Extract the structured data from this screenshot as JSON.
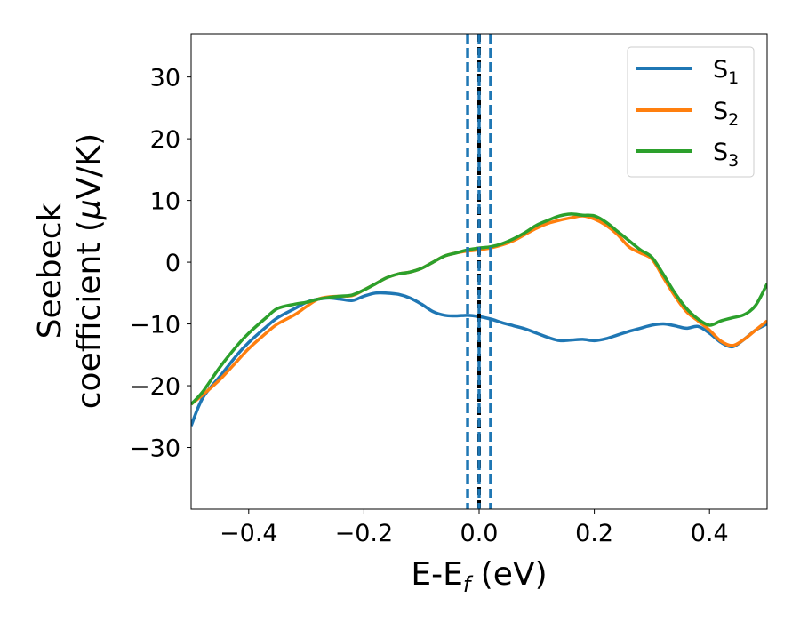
{
  "chart_data": {
    "type": "line",
    "xlabel": {
      "main": "E-E",
      "sub": "f",
      "unit": " (eV)"
    },
    "ylabel": {
      "line1": "Seebeck",
      "line2": "coefficient  (",
      "mu": "μ",
      "unit": "V/K)"
    },
    "xlim": [
      -0.5,
      0.5
    ],
    "ylim": [
      -40,
      37
    ],
    "xticks": [
      -0.4,
      -0.2,
      0.0,
      0.2,
      0.4
    ],
    "xtick_labels": [
      "−0.4",
      "−0.2",
      "0.0",
      "0.2",
      "0.4"
    ],
    "yticks": [
      -30,
      -20,
      -10,
      0,
      10,
      20,
      30
    ],
    "ytick_labels": [
      "−30",
      "−20",
      "−10",
      "0",
      "10",
      "20",
      "30"
    ],
    "grid": false,
    "legend_position": "top-right",
    "colors": {
      "S1": "#1f77b4",
      "S2": "#ff7f0e",
      "S3": "#2ca02c",
      "fermi": "#000000"
    },
    "series": [
      {
        "key": "S1",
        "name": "S",
        "sub": "1",
        "color": "#1f77b4",
        "x": [
          -0.5,
          -0.48,
          -0.45,
          -0.42,
          -0.4,
          -0.37,
          -0.35,
          -0.32,
          -0.3,
          -0.28,
          -0.26,
          -0.24,
          -0.22,
          -0.2,
          -0.18,
          -0.16,
          -0.14,
          -0.12,
          -0.1,
          -0.08,
          -0.06,
          -0.04,
          -0.02,
          0.0,
          0.02,
          0.04,
          0.06,
          0.08,
          0.1,
          0.12,
          0.14,
          0.16,
          0.18,
          0.2,
          0.22,
          0.24,
          0.26,
          0.28,
          0.3,
          0.32,
          0.34,
          0.36,
          0.38,
          0.4,
          0.42,
          0.44,
          0.46,
          0.48,
          0.5
        ],
        "y": [
          -26.5,
          -22.0,
          -18.5,
          -15.0,
          -13.0,
          -10.5,
          -9.0,
          -7.5,
          -6.5,
          -6.0,
          -5.8,
          -6.0,
          -6.2,
          -5.5,
          -5.0,
          -5.0,
          -5.2,
          -5.8,
          -6.8,
          -8.0,
          -8.6,
          -8.7,
          -8.6,
          -8.8,
          -9.2,
          -9.8,
          -10.3,
          -10.8,
          -11.5,
          -12.2,
          -12.7,
          -12.6,
          -12.5,
          -12.7,
          -12.4,
          -11.8,
          -11.2,
          -10.7,
          -10.2,
          -10.0,
          -10.3,
          -10.7,
          -10.4,
          -11.5,
          -13.0,
          -13.7,
          -12.5,
          -11.0,
          -10.0
        ]
      },
      {
        "key": "S2",
        "name": "S",
        "sub": "2",
        "color": "#ff7f0e",
        "x": [
          -0.5,
          -0.48,
          -0.45,
          -0.42,
          -0.4,
          -0.37,
          -0.35,
          -0.32,
          -0.3,
          -0.28,
          -0.26,
          -0.24,
          -0.22,
          -0.2,
          -0.18,
          -0.16,
          -0.14,
          -0.12,
          -0.1,
          -0.08,
          -0.06,
          -0.04,
          -0.02,
          0.0,
          0.02,
          0.04,
          0.06,
          0.08,
          0.1,
          0.12,
          0.14,
          0.16,
          0.18,
          0.2,
          0.22,
          0.24,
          0.26,
          0.28,
          0.3,
          0.32,
          0.34,
          0.36,
          0.38,
          0.4,
          0.42,
          0.44,
          0.46,
          0.48,
          0.5
        ],
        "y": [
          -23.0,
          -21.5,
          -19.0,
          -16.0,
          -14.0,
          -11.5,
          -10.0,
          -8.5,
          -7.2,
          -6.0,
          -5.6,
          -5.5,
          -5.4,
          -4.5,
          -3.5,
          -2.5,
          -1.9,
          -1.6,
          -1.0,
          0.0,
          1.0,
          1.5,
          1.8,
          2.0,
          2.3,
          2.8,
          3.5,
          4.5,
          5.5,
          6.3,
          6.8,
          7.2,
          7.5,
          7.0,
          6.0,
          4.5,
          2.5,
          1.5,
          0.5,
          -2.5,
          -5.5,
          -8.0,
          -9.5,
          -11.0,
          -12.8,
          -13.5,
          -12.5,
          -11.0,
          -9.5
        ]
      },
      {
        "key": "S3",
        "name": "S",
        "sub": "3",
        "color": "#2ca02c",
        "x": [
          -0.5,
          -0.48,
          -0.45,
          -0.42,
          -0.4,
          -0.37,
          -0.35,
          -0.32,
          -0.3,
          -0.28,
          -0.26,
          -0.24,
          -0.22,
          -0.2,
          -0.18,
          -0.16,
          -0.14,
          -0.12,
          -0.1,
          -0.08,
          -0.06,
          -0.04,
          -0.02,
          0.0,
          0.02,
          0.04,
          0.06,
          0.08,
          0.1,
          0.12,
          0.14,
          0.16,
          0.18,
          0.2,
          0.22,
          0.24,
          0.26,
          0.28,
          0.3,
          0.32,
          0.34,
          0.36,
          0.38,
          0.4,
          0.42,
          0.44,
          0.46,
          0.48,
          0.5
        ],
        "y": [
          -23.0,
          -21.0,
          -17.0,
          -13.5,
          -11.5,
          -9.0,
          -7.5,
          -6.8,
          -6.5,
          -6.0,
          -5.7,
          -5.5,
          -5.3,
          -4.5,
          -3.5,
          -2.5,
          -1.9,
          -1.6,
          -1.0,
          0.0,
          1.0,
          1.5,
          2.0,
          2.3,
          2.5,
          3.0,
          3.8,
          4.8,
          6.0,
          6.8,
          7.5,
          7.8,
          7.6,
          7.5,
          6.5,
          5.0,
          3.5,
          2.0,
          0.8,
          -2.0,
          -5.0,
          -7.5,
          -9.2,
          -10.2,
          -9.5,
          -9.0,
          -8.5,
          -7.0,
          -3.5
        ]
      }
    ],
    "vlines": [
      {
        "x": 0.0,
        "style": "dashed",
        "color": "#000000"
      },
      {
        "x": -0.02,
        "style": "dashed",
        "color": "#1f77b4"
      },
      {
        "x": 0.0,
        "style": "dashed",
        "color": "#1f77b4"
      },
      {
        "x": 0.02,
        "style": "dashed",
        "color": "#1f77b4"
      }
    ]
  }
}
